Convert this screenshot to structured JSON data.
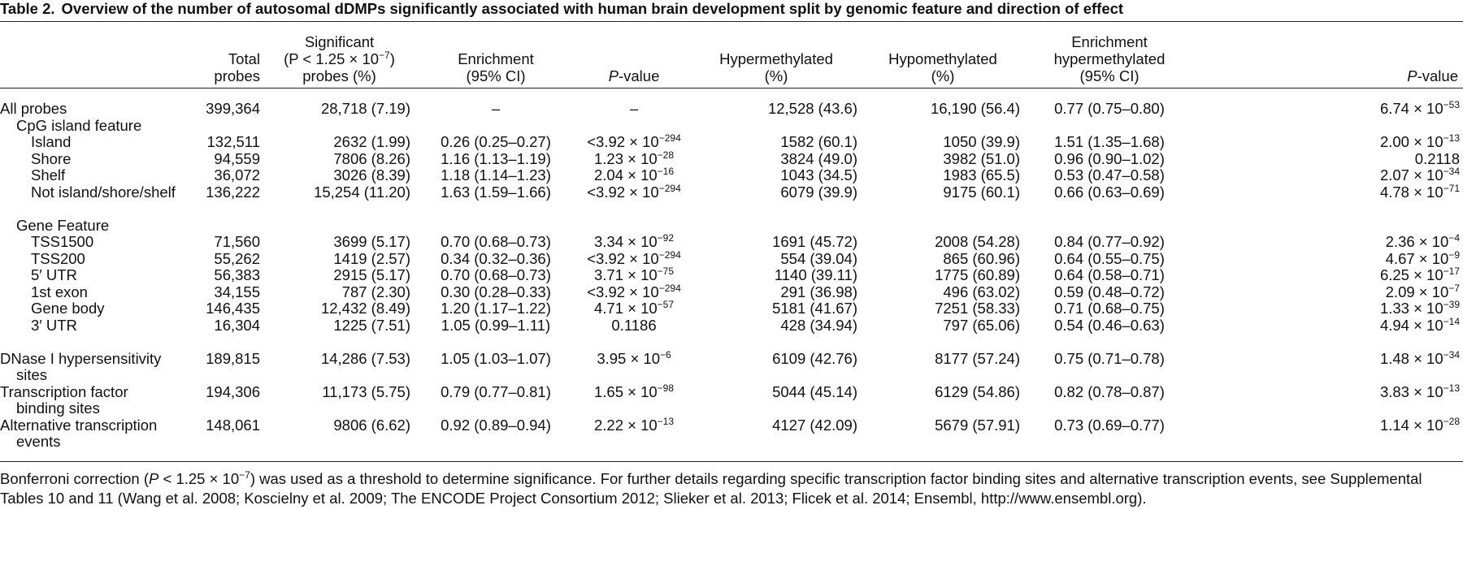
{
  "caption": {
    "label": "Table 2.",
    "title": "Overview of the number of autosomal dDMPs significantly associated with human brain development split by genomic feature and direction of effect"
  },
  "headers": {
    "total": [
      "Total",
      "probes"
    ],
    "significant": [
      "Significant",
      "(P < 1.25 × 10",
      "−7",
      ")",
      "probes (%)"
    ],
    "enrichment": [
      "Enrichment",
      "(95% CI)"
    ],
    "pvalue": [
      "P",
      "-value"
    ],
    "hyper": [
      "Hypermethylated",
      "(%)"
    ],
    "hypo": [
      "Hypomethylated",
      "(%)"
    ],
    "enrich_hyper": [
      "Enrichment",
      "hypermethylated",
      "(95% CI)"
    ],
    "pvalue2": [
      "P",
      "-value"
    ]
  },
  "rows": [
    {
      "label": "All probes",
      "total": "399,364",
      "sig": "28,718 (7.19)",
      "enr": "–",
      "p": "–",
      "pexp": "",
      "hyper": "12,528 (43.6)",
      "hypo": "16,190 (56.4)",
      "enrh": "0.77 (0.75–0.80)",
      "p2": "6.74 × 10",
      "p2exp": "−53"
    },
    {
      "label": "CpG island feature"
    },
    {
      "label": "Island",
      "total": "132,511",
      "sig": "2632 (1.99)",
      "enr": "0.26 (0.25–0.27)",
      "p": "<3.92 × 10",
      "pexp": "−294",
      "hyper": "1582 (60.1)",
      "hypo": "1050 (39.9)",
      "enrh": "1.51 (1.35–1.68)",
      "p2": "2.00 × 10",
      "p2exp": "−13"
    },
    {
      "label": "Shore",
      "total": "94,559",
      "sig": "7806 (8.26)",
      "enr": "1.16 (1.13–1.19)",
      "p": "1.23 × 10",
      "pexp": "−28",
      "hyper": "3824 (49.0)",
      "hypo": "3982 (51.0)",
      "enrh": "0.96 (0.90–1.02)",
      "p2": "0.2118",
      "p2exp": ""
    },
    {
      "label": "Shelf",
      "total": "36,072",
      "sig": "3026 (8.39)",
      "enr": "1.18 (1.14–1.23)",
      "p": "2.04 × 10",
      "pexp": "−16",
      "hyper": "1043 (34.5)",
      "hypo": "1983 (65.5)",
      "enrh": "0.53 (0.47–0.58)",
      "p2": "2.07 × 10",
      "p2exp": "−34"
    },
    {
      "label": "Not island/shore/shelf",
      "total": "136,222",
      "sig": "15,254 (11.20)",
      "enr": "1.63 (1.59–1.66)",
      "p": "<3.92 × 10",
      "pexp": "−294",
      "hyper": "6079 (39.9)",
      "hypo": "9175 (60.1)",
      "enrh": "0.66 (0.63–0.69)",
      "p2": "4.78 × 10",
      "p2exp": "−71"
    },
    {
      "label": "Gene Feature"
    },
    {
      "label": "TSS1500",
      "total": "71,560",
      "sig": "3699 (5.17)",
      "enr": "0.70 (0.68–0.73)",
      "p": "3.34 × 10",
      "pexp": "−92",
      "hyper": "1691 (45.72)",
      "hypo": "2008 (54.28)",
      "enrh": "0.84 (0.77–0.92)",
      "p2": "2.36 × 10",
      "p2exp": "−4"
    },
    {
      "label": "TSS200",
      "total": "55,262",
      "sig": "1419 (2.57)",
      "enr": "0.34 (0.32–0.36)",
      "p": "<3.92 × 10",
      "pexp": "−294",
      "hyper": "554 (39.04)",
      "hypo": "865 (60.96)",
      "enrh": "0.64 (0.55–0.75)",
      "p2": "4.67 × 10",
      "p2exp": "−9"
    },
    {
      "label": "5′ UTR",
      "total": "56,383",
      "sig": "2915 (5.17)",
      "enr": "0.70 (0.68–0.73)",
      "p": "3.71 × 10",
      "pexp": "−75",
      "hyper": "1140 (39.11)",
      "hypo": "1775 (60.89)",
      "enrh": "0.64 (0.58–0.71)",
      "p2": "6.25 × 10",
      "p2exp": "−17"
    },
    {
      "label": "1st exon",
      "total": "34,155",
      "sig": "787 (2.30)",
      "enr": "0.30 (0.28–0.33)",
      "p": "<3.92 × 10",
      "pexp": "−294",
      "hyper": "291 (36.98)",
      "hypo": "496 (63.02)",
      "enrh": "0.59 (0.48–0.72)",
      "p2": "2.09 × 10",
      "p2exp": "−7"
    },
    {
      "label": "Gene body",
      "total": "146,435",
      "sig": "12,432 (8.49)",
      "enr": "1.20 (1.17–1.22)",
      "p": "4.71 × 10",
      "pexp": "−57",
      "hyper": "5181 (41.67)",
      "hypo": "7251 (58.33)",
      "enrh": "0.71 (0.68–0.75)",
      "p2": "1.33 × 10",
      "p2exp": "−39"
    },
    {
      "label": "3′ UTR",
      "total": "16,304",
      "sig": "1225 (7.51)",
      "enr": "1.05 (0.99–1.11)",
      "p": "0.1186",
      "pexp": "",
      "hyper": "428 (34.94)",
      "hypo": "797 (65.06)",
      "enrh": "0.54 (0.46–0.63)",
      "p2": "4.94 × 10",
      "p2exp": "−14"
    },
    {
      "label": "DNase I hypersensitivity",
      "label2": "sites",
      "total": "189,815",
      "sig": "14,286 (7.53)",
      "enr": "1.05 (1.03–1.07)",
      "p": "3.95 × 10",
      "pexp": "−6",
      "hyper": "6109 (42.76)",
      "hypo": "8177 (57.24)",
      "enrh": "0.75 (0.71–0.78)",
      "p2": "1.48 × 10",
      "p2exp": "−34"
    },
    {
      "label": "Transcription factor",
      "label2": "binding sites",
      "total": "194,306",
      "sig": "11,173 (5.75)",
      "enr": "0.79 (0.77–0.81)",
      "p": "1.65 × 10",
      "pexp": "−98",
      "hyper": "5044 (45.14)",
      "hypo": "6129 (54.86)",
      "enrh": "0.82 (0.78–0.87)",
      "p2": "3.83 × 10",
      "p2exp": "−13"
    },
    {
      "label": "Alternative transcription",
      "label2": "events",
      "total": "148,061",
      "sig": "9806 (6.62)",
      "enr": "0.92 (0.89–0.94)",
      "p": "2.22 × 10",
      "pexp": "−13",
      "hyper": "4127 (42.09)",
      "hypo": "5679 (57.91)",
      "enrh": "0.73 (0.69–0.77)",
      "p2": "1.14 × 10",
      "p2exp": "−28"
    }
  ],
  "footnote": {
    "pre": "Bonferroni correction (",
    "p": "P",
    "mid": " < 1.25 × 10",
    "exp": "−7",
    "post": ") was used as a threshold to determine significance. For further details regarding specific transcription factor binding sites and alternative transcription events, see Supplemental Tables 10 and 11 (Wang et al. 2008; Koscielny et al. 2009; The ENCODE Project Consortium 2012; Slieker et al. 2013; Flicek et al. 2014; Ensembl, http://www.ensembl.org)."
  }
}
